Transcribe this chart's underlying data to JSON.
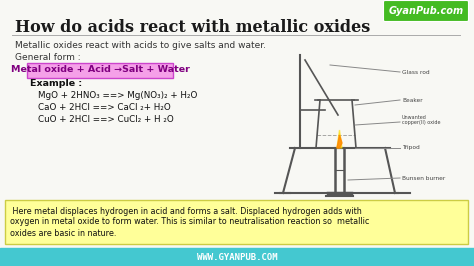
{
  "bg_color": "#f8f8f4",
  "title": "How do acids react with metallic oxides",
  "title_color": "#1a1a1a",
  "subtitle": "Metallic oxides react with acids to give salts and water.",
  "general_form_label": "General form :",
  "formula_box_text": "Metal oxide + Acid →Salt + Water",
  "formula_box_bg": "#f5a0e8",
  "formula_box_border": "#cc44cc",
  "formula_box_fg": "#800080",
  "example_label": "Example :",
  "eq1": "MgO + 2HNO₃ ==> Mg(NO₃)₂ + H₂O",
  "eq2": "CaO + 2HCl ==> CaCl ₂+ H₂O",
  "eq3": "CuO + 2HCl ==> CuCl₂ + H ₂O",
  "note_line1": " Here metal displaces hydrogen in acid and forms a salt. Displaced hydrogen adds with",
  "note_line2": "oxygen in metal oxide to form water. This is similar to neutralisation reaction so  metallic",
  "note_line3": "oxides are basic in nature.",
  "note_bg": "#ffff99",
  "note_border": "#cccc44",
  "footer_text": "WWW.GYANPUB.COM",
  "footer_bg": "#44c8d0",
  "footer_fg": "#ffffff",
  "logo_text": "GyanPub.com",
  "logo_bg": "#44bb22",
  "logo_fg": "#ffffff",
  "diagram_color": "#555555",
  "label_color": "#444444"
}
